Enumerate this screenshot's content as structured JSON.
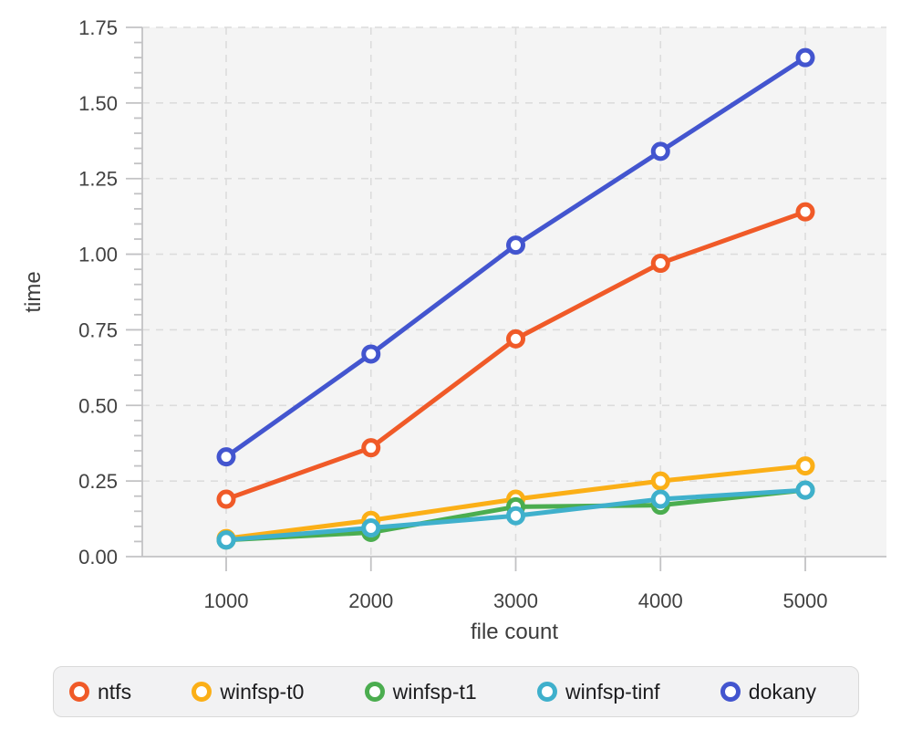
{
  "figure": {
    "background": "#ffffff",
    "plot_background": "#f4f4f4",
    "grid_color": "#dcdcdc",
    "axis_color": "#c2c2c4",
    "tick_label_color": "#414141",
    "axis_title_color": "#3c3c3c",
    "legend_text_color": "#1c1c1e",
    "legend_background": "#f2f2f3",
    "legend_border": "#d9d9d9"
  },
  "chart_data": {
    "type": "line",
    "title": "",
    "xlabel": "file count",
    "ylabel": "time",
    "x": [
      1000,
      2000,
      3000,
      4000,
      5000
    ],
    "x_tick_labels": [
      "1000",
      "2000",
      "3000",
      "4000",
      "5000"
    ],
    "y_tick_labels": [
      "0.00",
      "0.25",
      "0.50",
      "0.75",
      "1.00",
      "1.25",
      "1.50",
      "1.75"
    ],
    "ylim": [
      0,
      1.75
    ],
    "y_major_step": 0.25,
    "y_minor_step": 0.05,
    "grid": "dashed",
    "legend_position": "bottom",
    "marker_style": "open-circle",
    "series": [
      {
        "name": "ntfs",
        "color": "#f05a28",
        "values": [
          0.19,
          0.36,
          0.72,
          0.97,
          1.14
        ]
      },
      {
        "name": "winfsp-t0",
        "color": "#fbaf17",
        "values": [
          0.06,
          0.12,
          0.19,
          0.25,
          0.3
        ]
      },
      {
        "name": "winfsp-t1",
        "color": "#4bad4f",
        "values": [
          0.055,
          0.08,
          0.165,
          0.17,
          0.22
        ]
      },
      {
        "name": "winfsp-tinf",
        "color": "#3fb0cc",
        "values": [
          0.055,
          0.095,
          0.135,
          0.19,
          0.22
        ]
      },
      {
        "name": "dokany",
        "color": "#4355cf",
        "values": [
          0.33,
          0.67,
          1.03,
          1.34,
          1.65
        ]
      }
    ]
  }
}
